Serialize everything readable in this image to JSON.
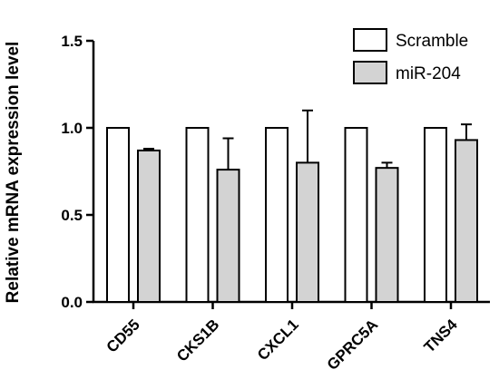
{
  "chart_data": {
    "type": "bar",
    "title": "",
    "xlabel": "",
    "ylabel": "Relative mRNA expression level",
    "ylim": [
      0,
      1.5
    ],
    "yticks": [
      0.0,
      0.5,
      1.0,
      1.5
    ],
    "ytick_labels": [
      "0.0",
      "0.5",
      "1.0",
      "1.5"
    ],
    "categories": [
      "CD55",
      "CKS1B",
      "CXCL1",
      "GPRC5A",
      "TNS4"
    ],
    "series": [
      {
        "name": "Scramble",
        "color": "#ffffff",
        "values": [
          1.0,
          1.0,
          1.0,
          1.0,
          1.0
        ],
        "errors": [
          0,
          0,
          0,
          0,
          0
        ]
      },
      {
        "name": "miR-204",
        "color": "#d3d3d3",
        "values": [
          0.87,
          0.76,
          0.8,
          0.77,
          0.93
        ],
        "errors": [
          0.01,
          0.18,
          0.3,
          0.03,
          0.09
        ]
      }
    ],
    "legend_position": "top-right",
    "grid": false
  }
}
